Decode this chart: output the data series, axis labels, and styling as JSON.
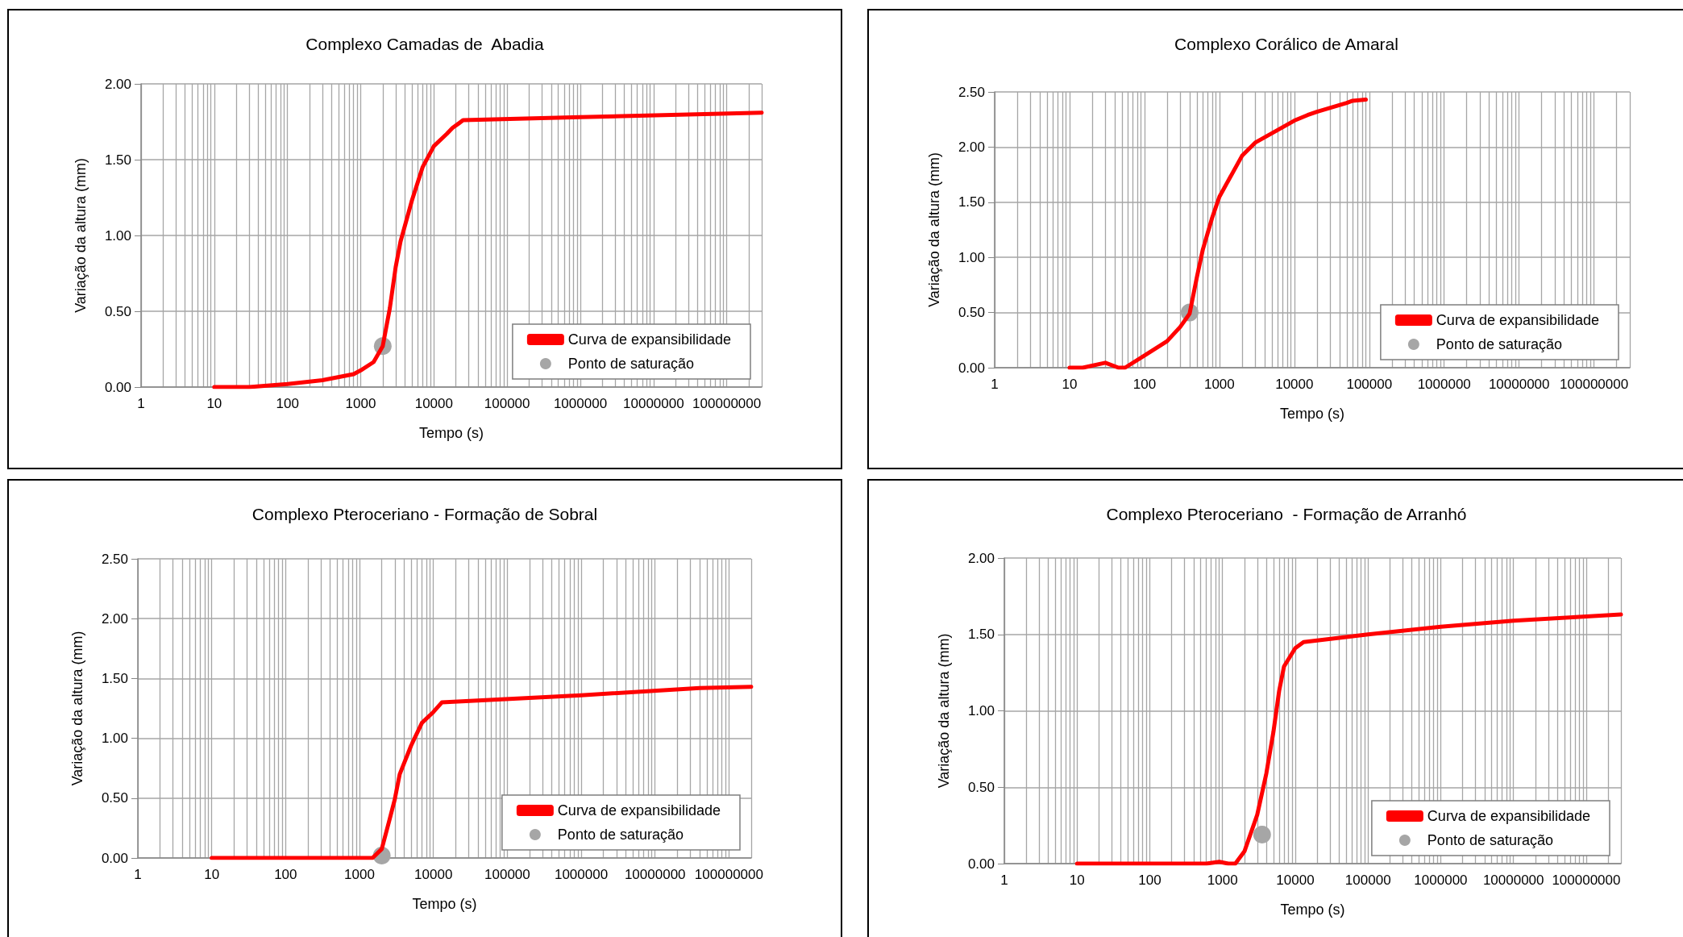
{
  "chart_data": [
    {
      "type": "line",
      "title": "Complexo Camadas de  Abadia",
      "xlabel": "Tempo (s)",
      "ylabel": "Variação da altura (mm)",
      "log": "x",
      "grid": true,
      "legend": "bottom right",
      "xlim": [
        1,
        300000000
      ],
      "xticks": [
        1,
        10,
        100,
        1000,
        10000,
        100000,
        1000000,
        10000000,
        100000000
      ],
      "ylim": [
        0,
        2
      ],
      "yticks": [
        {
          "value": 0,
          "label": "0.00"
        },
        {
          "value": 0.5,
          "label": "0.50"
        },
        {
          "value": 1,
          "label": "1.00"
        },
        {
          "value": 1.5,
          "label": "1.50"
        },
        {
          "value": 2,
          "label": "2.00"
        }
      ],
      "series": [
        {
          "name": "Curva de expansibilidade",
          "type": "line",
          "marker": "none",
          "color": "#ff0000",
          "x": [
            10,
            30,
            100,
            300,
            800,
            1000,
            1500,
            2000,
            2500,
            3000,
            3500,
            5000,
            7000,
            10000,
            15000,
            18000,
            22000,
            25000,
            1000000,
            300000000
          ],
          "values": [
            0,
            0,
            0.02,
            0.045,
            0.085,
            0.11,
            0.165,
            0.27,
            0.52,
            0.79,
            0.96,
            1.23,
            1.45,
            1.59,
            1.67,
            1.71,
            1.74,
            1.76,
            1.78,
            1.81
          ]
        },
        {
          "name": "Ponto de saturação",
          "type": "scatter",
          "marker": "circle",
          "color": "#a6a6a6",
          "x": [
            2000
          ],
          "values": [
            0.27
          ]
        }
      ]
    },
    {
      "type": "line",
      "title": "Complexo Corálico de Amaral",
      "xlabel": "Tempo (s)",
      "ylabel": "Variação da altura (mm)",
      "log": "x",
      "grid": true,
      "legend": "bottom right",
      "xlim": [
        1,
        300000000
      ],
      "xticks": [
        1,
        10,
        100,
        1000,
        10000,
        100000,
        1000000,
        10000000,
        100000000
      ],
      "ylim": [
        0,
        2.5
      ],
      "yticks": [
        {
          "value": 0,
          "label": "0.00"
        },
        {
          "value": 0.5,
          "label": "0.50"
        },
        {
          "value": 1,
          "label": "1.00"
        },
        {
          "value": 1.5,
          "label": "1.50"
        },
        {
          "value": 2,
          "label": "2.00"
        },
        {
          "value": 2.5,
          "label": "2.50"
        }
      ],
      "series": [
        {
          "name": "Curva de expansibilidade",
          "type": "line",
          "marker": "none",
          "color": "#ff0000",
          "x": [
            10,
            15,
            30,
            45,
            55,
            100,
            200,
            300,
            400,
            500,
            600,
            800,
            1000,
            2000,
            3000,
            10000,
            15000,
            20000,
            50000,
            60000,
            90000
          ],
          "values": [
            0,
            0,
            0.045,
            0,
            0,
            0.11,
            0.24,
            0.37,
            0.49,
            0.82,
            1.07,
            1.36,
            1.55,
            1.92,
            2.04,
            2.24,
            2.29,
            2.32,
            2.4,
            2.42,
            2.43
          ]
        },
        {
          "name": "Ponto de saturação",
          "type": "scatter",
          "marker": "circle",
          "color": "#a6a6a6",
          "x": [
            400
          ],
          "values": [
            0.5
          ]
        }
      ]
    },
    {
      "type": "line",
      "title": "Complexo Pteroceriano - Formação de Sobral",
      "xlabel": "Tempo (s)",
      "ylabel": "Variação da altura (mm)",
      "log": "x",
      "grid": true,
      "legend": "bottom right",
      "xlim": [
        1,
        200000000
      ],
      "xticks": [
        1,
        10,
        100,
        1000,
        10000,
        100000,
        1000000,
        10000000,
        100000000
      ],
      "ylim": [
        0,
        2.5
      ],
      "yticks": [
        {
          "value": 0,
          "label": "0.00"
        },
        {
          "value": 0.5,
          "label": "0.50"
        },
        {
          "value": 1,
          "label": "1.00"
        },
        {
          "value": 1.5,
          "label": "1.50"
        },
        {
          "value": 2,
          "label": "2.00"
        },
        {
          "value": 2.5,
          "label": "2.50"
        }
      ],
      "series": [
        {
          "name": "Curva de expansibilidade",
          "type": "line",
          "marker": "none",
          "color": "#ff0000",
          "x": [
            10,
            1000,
            1500,
            2000,
            2500,
            3000,
            3500,
            5000,
            7000,
            10000,
            13000,
            1000000,
            40000000,
            200000000
          ],
          "values": [
            0,
            0,
            0,
            0.075,
            0.3,
            0.49,
            0.7,
            0.94,
            1.13,
            1.22,
            1.3,
            1.36,
            1.42,
            1.43
          ]
        },
        {
          "name": "Ponto de saturação",
          "type": "scatter",
          "marker": "circle",
          "color": "#a6a6a6",
          "x": [
            2000
          ],
          "values": [
            0.02
          ]
        }
      ]
    },
    {
      "type": "line",
      "title": "Complexo Pteroceriano  - Formação de Arranhó",
      "xlabel": "Tempo (s)",
      "ylabel": "Variação da altura (mm)",
      "log": "x",
      "grid": true,
      "legend": "bottom right",
      "xlim": [
        1,
        300000000
      ],
      "xticks": [
        1,
        10,
        100,
        1000,
        10000,
        100000,
        1000000,
        10000000,
        100000000
      ],
      "ylim": [
        0,
        2
      ],
      "yticks": [
        {
          "value": 0,
          "label": "0.00"
        },
        {
          "value": 0.5,
          "label": "0.50"
        },
        {
          "value": 1,
          "label": "1.00"
        },
        {
          "value": 1.5,
          "label": "1.50"
        },
        {
          "value": 2,
          "label": "2.00"
        }
      ],
      "series": [
        {
          "name": "Curva de expansibilidade",
          "type": "line",
          "marker": "none",
          "color": "#ff0000",
          "x": [
            10,
            600,
            900,
            1200,
            1500,
            2000,
            3000,
            4000,
            5000,
            6000,
            7000,
            10000,
            13000,
            100000,
            1000000,
            10000000,
            300000000
          ],
          "values": [
            0,
            0,
            0.012,
            0,
            0,
            0.08,
            0.32,
            0.59,
            0.86,
            1.13,
            1.29,
            1.41,
            1.45,
            1.5,
            1.55,
            1.59,
            1.63
          ]
        },
        {
          "name": "Ponto de saturação",
          "type": "scatter",
          "marker": "circle",
          "color": "#a6a6a6",
          "x": [
            3500
          ],
          "values": [
            0.19
          ]
        }
      ]
    }
  ]
}
